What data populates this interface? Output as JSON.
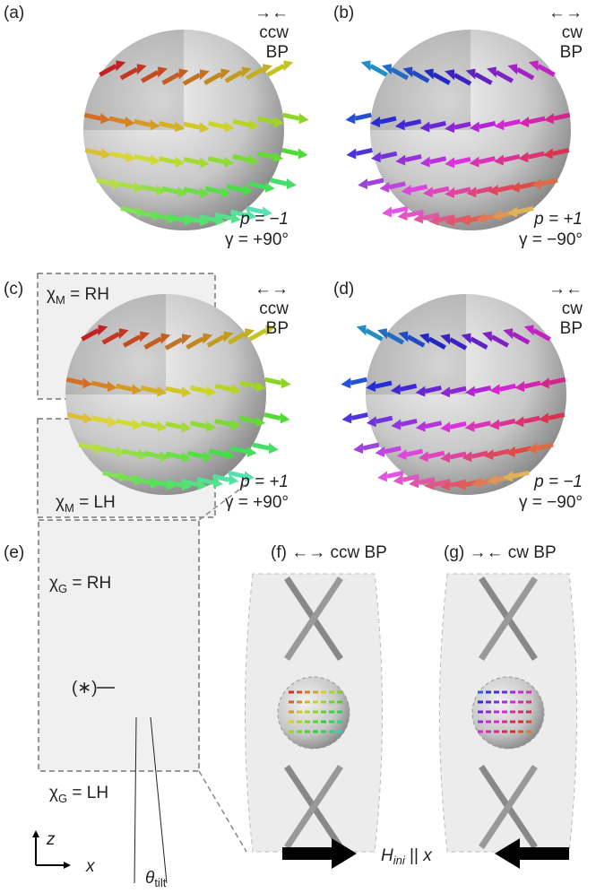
{
  "panels": [
    {
      "label": "(a)",
      "arrows": "→←",
      "chirality": "ccw",
      "kind": "BP",
      "p": "p = −1",
      "gamma": "γ = +90°"
    },
    {
      "label": "(b)",
      "arrows": "←→",
      "chirality": "cw",
      "kind": "BP",
      "p": "p = +1",
      "gamma": "γ = −90°"
    },
    {
      "label": "(c)",
      "arrows": "←→",
      "chirality": "ccw",
      "kind": "BP",
      "p": "p = +1",
      "gamma": "γ = +90°"
    },
    {
      "label": "(d)",
      "arrows": "→←",
      "chirality": "cw",
      "kind": "BP",
      "p": "p = −1",
      "gamma": "γ = −90°"
    }
  ],
  "magnetic_chirality": [
    {
      "symbol": "χ",
      "sub": "M",
      "rest": " = RH"
    },
    {
      "symbol": "χ",
      "sub": "M",
      "rest": " = LH"
    }
  ],
  "geometric_chirality": [
    {
      "symbol": "χ",
      "sub": "G",
      "rest": " = RH"
    },
    {
      "symbol": "χ",
      "sub": "G",
      "rest": " = LH"
    }
  ],
  "panel_e": {
    "label": "(e)",
    "marker": "(∗)",
    "angle": {
      "symbol": "θ",
      "sub": "tilt"
    },
    "axis_z": "z",
    "axis_x": "x"
  },
  "panel_f": {
    "label": "(f) ←→ ccw BP"
  },
  "panel_g": {
    "label": "(g) →← cw BP"
  },
  "field": {
    "symbol": "H",
    "sub": "ini",
    "rest": " || ",
    "axis": "x"
  }
}
